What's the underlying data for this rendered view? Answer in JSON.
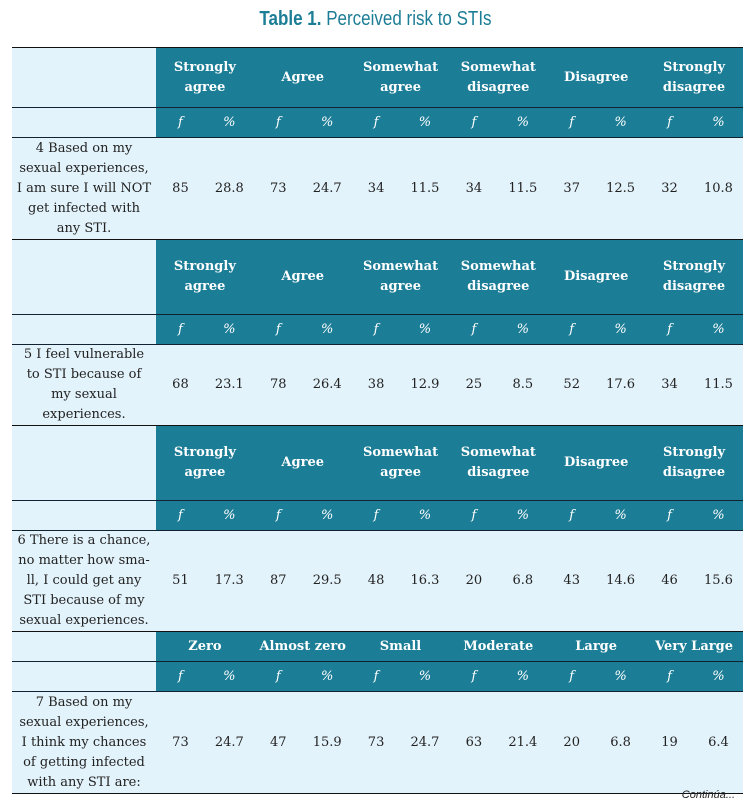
{
  "title": {
    "label": "Table 1.",
    "text": "Perceived risk to STIs"
  },
  "blocks": [
    {
      "headers": [
        "Strongly agree",
        "Agree",
        "Somewhat agree",
        "Somewhat disagree",
        "Disagree",
        "Strongly disagree"
      ],
      "sub": [
        "f",
        "%"
      ],
      "question": "4 Based on my sexual experiences, I am sure I will NOT get infected with any STI.",
      "values": [
        "85",
        "28.8",
        "73",
        "24.7",
        "34",
        "11.5",
        "34",
        "11.5",
        "37",
        "12.5",
        "32",
        "10.8"
      ]
    },
    {
      "headers": [
        "Strongly agree",
        "Agree",
        "Somewhat agree",
        "Somewhat disagree",
        "Disagree",
        "Strongly disagree"
      ],
      "sub": [
        "f",
        "%"
      ],
      "question": "5 I feel vulnerable to STI because of my sexual experiences.",
      "values": [
        "68",
        "23.1",
        "78",
        "26.4",
        "38",
        "12.9",
        "25",
        "8.5",
        "52",
        "17.6",
        "34",
        "11.5"
      ]
    },
    {
      "headers": [
        "Strongly agree",
        "Agree",
        "Somewhat agree",
        "Somewhat disagree",
        "Disagree",
        "Strongly disagree"
      ],
      "sub": [
        "f",
        "%"
      ],
      "question": "6 There is a chance, no matter how sma-ll, I could get any STI because of my sexual experiences.",
      "values": [
        "51",
        "17.3",
        "87",
        "29.5",
        "48",
        "16.3",
        "20",
        "6.8",
        "43",
        "14.6",
        "46",
        "15.6"
      ]
    },
    {
      "headers": [
        "Zero",
        "Almost zero",
        "Small",
        "Moderate",
        "Large",
        "Very Large"
      ],
      "sub": [
        "f",
        "%"
      ],
      "question": "7 Based on my sexual experiences, I think my chances of getting infected with any STI are:",
      "values": [
        "73",
        "24.7",
        "47",
        "15.9",
        "73",
        "24.7",
        "63",
        "21.4",
        "20",
        "6.8",
        "19",
        "6.4"
      ]
    }
  ],
  "footer": "Continúa..."
}
